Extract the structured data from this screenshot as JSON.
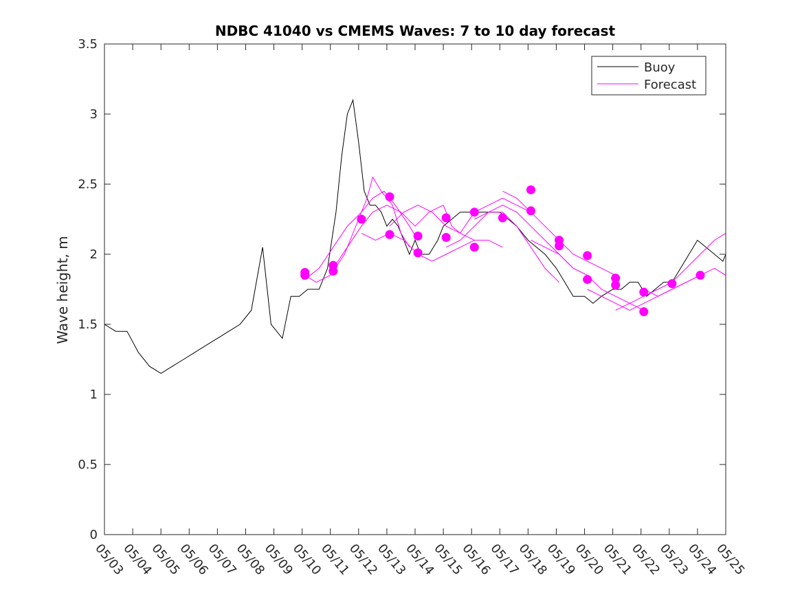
{
  "chart_data": {
    "type": "line",
    "title": "NDBC 41040 vs CMEMS Waves: 7 to 10 day forecast",
    "ylabel": "Wave height, m",
    "xlabel": "",
    "xlim": [
      0,
      22
    ],
    "ylim": [
      0,
      3.5
    ],
    "yticks": [
      0,
      0.5,
      1,
      1.5,
      2,
      2.5,
      3,
      3.5
    ],
    "ytick_labels": [
      "0",
      "0.5",
      "1",
      "1.5",
      "2",
      "2.5",
      "3",
      "3.5"
    ],
    "xticks": [
      0,
      1,
      2,
      3,
      4,
      5,
      6,
      7,
      8,
      9,
      10,
      11,
      12,
      13,
      14,
      15,
      16,
      17,
      18,
      19,
      20,
      21,
      22
    ],
    "xtick_labels": [
      "05/03",
      "05/04",
      "05/05",
      "05/06",
      "05/07",
      "05/08",
      "05/09",
      "05/10",
      "05/11",
      "05/12",
      "05/13",
      "05/14",
      "05/15",
      "05/16",
      "05/17",
      "05/18",
      "05/19",
      "05/20",
      "05/21",
      "05/22",
      "05/23",
      "05/24",
      "05/25"
    ],
    "grid": false,
    "legend_position": "top-right",
    "colors": {
      "buoy": "#000000",
      "forecast": "#ff00ff",
      "axis": "#262626"
    },
    "series": [
      {
        "name": "Buoy",
        "x": [
          0,
          0.4,
          0.8,
          1.2,
          1.6,
          2,
          2.4,
          2.8,
          3.2,
          3.6,
          4,
          4.4,
          4.8,
          5.2,
          5.6,
          5.9,
          6.1,
          6.3,
          6.6,
          6.9,
          7.2,
          7.6,
          7.9,
          8.2,
          8.4,
          8.6,
          8.8,
          9,
          9.2,
          9.4,
          9.6,
          9.8,
          10,
          10.2,
          10.4,
          10.6,
          10.8,
          11,
          11.2,
          11.5,
          11.8,
          12,
          12.3,
          12.6,
          13,
          13.3,
          13.6,
          14,
          14.3,
          14.6,
          15,
          15.3,
          15.6,
          16,
          16.3,
          16.6,
          17,
          17.3,
          17.6,
          18,
          18.3,
          18.6,
          18.9,
          19.2,
          19.5,
          19.8,
          20.1,
          20.4,
          20.7,
          21,
          21.3,
          21.6,
          21.9,
          22
        ],
        "values": [
          1.5,
          1.45,
          1.45,
          1.3,
          1.2,
          1.15,
          1.2,
          1.25,
          1.3,
          1.35,
          1.4,
          1.45,
          1.5,
          1.6,
          2.05,
          1.5,
          1.45,
          1.4,
          1.7,
          1.7,
          1.75,
          1.75,
          1.9,
          2.3,
          2.7,
          3.0,
          3.1,
          2.8,
          2.45,
          2.35,
          2.35,
          2.3,
          2.2,
          2.25,
          2.2,
          2.1,
          2.0,
          2.1,
          2.0,
          2.0,
          2.1,
          2.2,
          2.25,
          2.3,
          2.3,
          2.3,
          2.3,
          2.3,
          2.25,
          2.2,
          2.1,
          2.05,
          2.0,
          1.9,
          1.8,
          1.7,
          1.7,
          1.65,
          1.7,
          1.75,
          1.75,
          1.8,
          1.8,
          1.7,
          1.75,
          1.8,
          1.8,
          1.9,
          2.0,
          2.1,
          2.05,
          2.0,
          1.95,
          2.0
        ]
      },
      {
        "name": "Forecast",
        "lines": [
          {
            "x": [
              7.1,
              7.5,
              8,
              8.5,
              9,
              9.3,
              9.5,
              9.8,
              10.2,
              10.5,
              10.8
            ],
            "values": [
              1.85,
              1.8,
              1.85,
              2.0,
              2.25,
              2.4,
              2.55,
              2.45,
              2.35,
              2.15,
              2.05
            ]
          },
          {
            "x": [
              7.1,
              7.6,
              8.1,
              8.6,
              9.1,
              9.5,
              9.9,
              10.3,
              10.8,
              11.1
            ],
            "values": [
              1.82,
              1.9,
              2.05,
              2.2,
              2.3,
              2.4,
              2.45,
              2.35,
              2.2,
              2.1
            ]
          },
          {
            "x": [
              8.1,
              8.6,
              9.1,
              9.5,
              10,
              10.5,
              11,
              11.5,
              12,
              12.3,
              12.6,
              13.1
            ],
            "values": [
              1.9,
              2.05,
              2.2,
              2.3,
              2.35,
              2.3,
              2.2,
              2.3,
              2.35,
              2.2,
              2.15,
              2.1
            ]
          },
          {
            "x": [
              9.1,
              9.6,
              10.1,
              10.6,
              11.1,
              11.6,
              12.1,
              12.6,
              13.1,
              13.6,
              14.1
            ],
            "values": [
              2.15,
              2.1,
              2.15,
              2.1,
              2.0,
              1.95,
              2.0,
              2.05,
              2.1,
              2.1,
              2.05
            ]
          },
          {
            "x": [
              10.1,
              10.6,
              11.1,
              11.6,
              12.1,
              12.6,
              13.1,
              13.6,
              14.1,
              14.6,
              15.1
            ],
            "values": [
              2.2,
              2.3,
              2.35,
              2.3,
              2.2,
              2.15,
              2.3,
              2.35,
              2.4,
              2.35,
              2.3
            ]
          },
          {
            "x": [
              12.1,
              12.6,
              13.1,
              13.6,
              14.1,
              14.6,
              15.1,
              15.6,
              16.1
            ],
            "values": [
              2.05,
              2.1,
              2.2,
              2.3,
              2.3,
              2.2,
              2.05,
              1.9,
              1.8
            ]
          },
          {
            "x": [
              13.1,
              13.6,
              14.1,
              14.6,
              15.1,
              15.6,
              16.1,
              16.6,
              17.1
            ],
            "values": [
              2.25,
              2.3,
              2.35,
              2.3,
              2.2,
              2.1,
              2.0,
              1.9,
              1.85
            ]
          },
          {
            "x": [
              14.1,
              14.6,
              15.1,
              15.6,
              16.1,
              16.6,
              17.1,
              17.6,
              18.1
            ],
            "values": [
              2.45,
              2.4,
              2.3,
              2.2,
              2.1,
              2.0,
              1.95,
              1.9,
              1.85
            ]
          },
          {
            "x": [
              15.1,
              15.6,
              16.1,
              16.6,
              17.1,
              17.6,
              18.1,
              18.6,
              19.1
            ],
            "values": [
              2.1,
              2.05,
              2.0,
              1.9,
              1.85,
              1.75,
              1.7,
              1.65,
              1.6
            ]
          },
          {
            "x": [
              17.1,
              17.6,
              18.1,
              18.6,
              19.1,
              19.6,
              20.1,
              20.6,
              21.1
            ],
            "values": [
              1.75,
              1.7,
              1.65,
              1.6,
              1.65,
              1.7,
              1.75,
              1.8,
              1.85
            ]
          },
          {
            "x": [
              18.1,
              18.6,
              19.1,
              19.6,
              20.1,
              20.6,
              21.1,
              21.6,
              22
            ],
            "values": [
              1.6,
              1.65,
              1.7,
              1.75,
              1.8,
              1.9,
              2.0,
              2.1,
              2.15
            ]
          },
          {
            "x": [
              19.1,
              19.6,
              20.1,
              20.6,
              21.1,
              21.6,
              22
            ],
            "values": [
              1.75,
              1.7,
              1.75,
              1.8,
              1.85,
              1.9,
              1.85
            ]
          }
        ],
        "markers": {
          "x": [
            7.1,
            7.1,
            8.1,
            8.1,
            9.1,
            10.1,
            10.1,
            11.1,
            11.1,
            12.1,
            12.1,
            13.1,
            13.1,
            14.1,
            15.1,
            15.1,
            16.1,
            16.1,
            17.1,
            17.1,
            18.1,
            18.1,
            19.1,
            19.1,
            20.1,
            21.1
          ],
          "values": [
            1.87,
            1.85,
            1.92,
            1.88,
            2.25,
            2.41,
            2.14,
            2.13,
            2.01,
            2.26,
            2.12,
            2.3,
            2.05,
            2.26,
            2.46,
            2.31,
            2.1,
            2.06,
            1.99,
            1.82,
            1.83,
            1.78,
            1.73,
            1.59,
            1.79,
            1.85
          ]
        }
      }
    ]
  }
}
